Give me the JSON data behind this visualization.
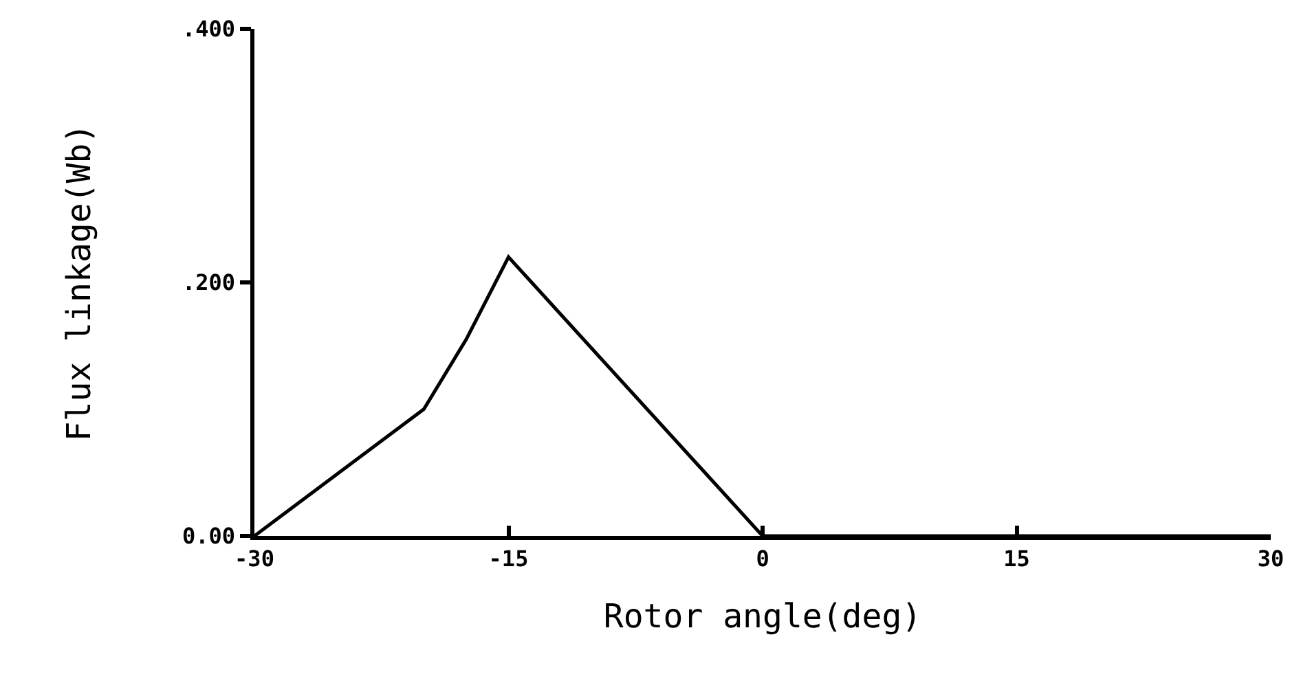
{
  "chart_data": {
    "type": "line",
    "xlabel": "Rotor angle(deg)",
    "ylabel": "Flux linkage(Wb)",
    "x": [
      -30,
      -25,
      -20,
      -17.5,
      -15,
      0,
      15,
      30
    ],
    "series": [
      {
        "color": "#000000",
        "values": [
          0,
          0.05,
          0.1,
          0.155,
          0.22,
          0,
          0,
          0
        ]
      }
    ],
    "xlim": [
      -30,
      30
    ],
    "xticks": [
      -30,
      -15,
      0,
      15,
      30
    ],
    "ylim": [
      0,
      0.4
    ],
    "yticks": [
      {
        "value": 0,
        "label": "0.00"
      },
      {
        "value": 0.2,
        "label": ".200"
      },
      {
        "value": 0.4,
        "label": ".400"
      }
    ],
    "line_style": "solid"
  }
}
